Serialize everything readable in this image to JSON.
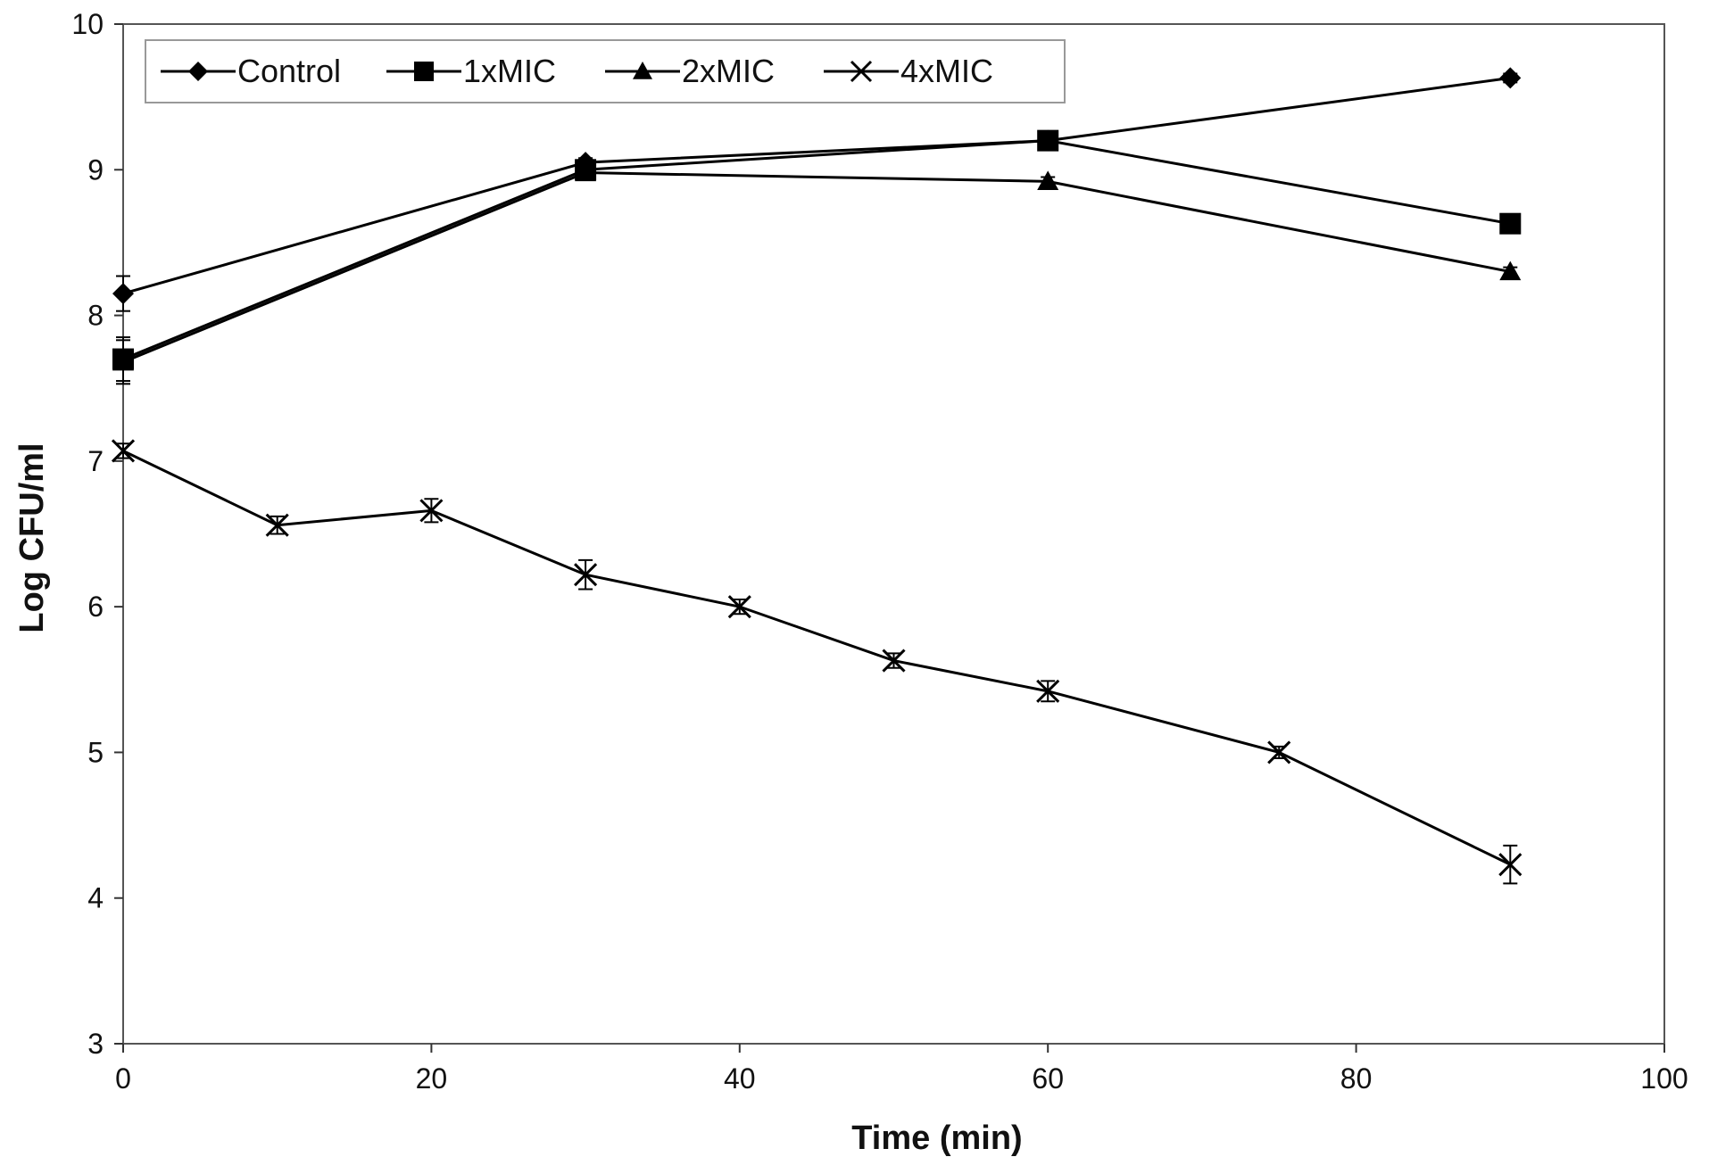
{
  "chart_data": {
    "type": "line",
    "title": "",
    "xlabel": "Time (min)",
    "ylabel": "Log CFU/ml",
    "xlim": [
      0,
      100
    ],
    "ylim": [
      3,
      10
    ],
    "xticks": [
      0,
      20,
      40,
      60,
      80,
      100
    ],
    "yticks": [
      3,
      4,
      5,
      6,
      7,
      8,
      9,
      10
    ],
    "grid": false,
    "legend_position": "top",
    "series": [
      {
        "name": "Control",
        "marker": "diamond",
        "x": [
          0,
          30,
          60,
          90
        ],
        "y": [
          8.15,
          9.05,
          9.2,
          9.63
        ],
        "err": [
          0.12,
          0.03,
          0.03,
          0.03
        ]
      },
      {
        "name": "1xMIC",
        "marker": "square",
        "x": [
          0,
          30,
          60,
          90
        ],
        "y": [
          7.7,
          9.0,
          9.2,
          8.63
        ],
        "err": [
          0.15,
          0.03,
          0.03,
          0.03
        ]
      },
      {
        "name": "2xMIC",
        "marker": "triangle",
        "x": [
          0,
          30,
          60,
          90
        ],
        "y": [
          7.68,
          8.98,
          8.92,
          8.3
        ],
        "err": [
          0.15,
          0.03,
          0.03,
          0.03
        ]
      },
      {
        "name": "4xMIC",
        "marker": "x",
        "x": [
          0,
          10,
          20,
          30,
          40,
          50,
          60,
          75,
          90
        ],
        "y": [
          7.07,
          6.56,
          6.66,
          6.22,
          6.0,
          5.63,
          5.42,
          5.0,
          4.23
        ],
        "err": [
          0.05,
          0.06,
          0.08,
          0.1,
          0.05,
          0.05,
          0.07,
          0.04,
          0.13
        ]
      }
    ]
  }
}
